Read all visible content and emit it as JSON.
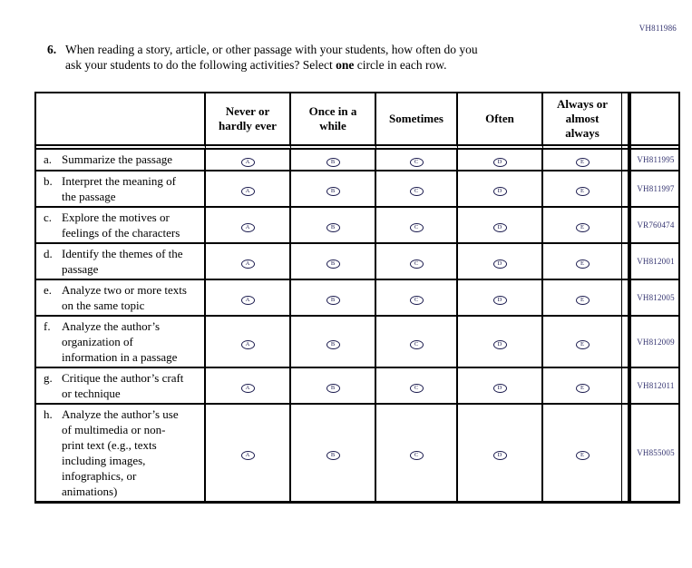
{
  "form_code": "VH811986",
  "question": {
    "number": "6.",
    "line1": "When reading a story, article, or other passage with your students, how often do you",
    "line2_pre": "ask your students to do the following activities? Select ",
    "line2_bold": "one",
    "line2_post": " circle in each row."
  },
  "table": {
    "columns": [
      "Never or hardly ever",
      "Once in a while",
      "Sometimes",
      "Often",
      "Always or almost always"
    ],
    "options": [
      "A",
      "B",
      "C",
      "D",
      "E"
    ],
    "rows": [
      {
        "letter": "a.",
        "label": "Summarize the passage",
        "code": "VH811995"
      },
      {
        "letter": "b.",
        "label": "Interpret the meaning of the passage",
        "code": "VH811997"
      },
      {
        "letter": "c.",
        "label": "Explore the motives or feelings of the characters",
        "code": "VR760474"
      },
      {
        "letter": "d.",
        "label": "Identify the themes of the passage",
        "code": "VH812001"
      },
      {
        "letter": "e.",
        "label": "Analyze two or more texts on the same topic",
        "code": "VH812005"
      },
      {
        "letter": "f.",
        "label": "Analyze the author’s organization of information in a passage",
        "code": "VH812009"
      },
      {
        "letter": "g.",
        "label": "Critique the author’s craft or technique",
        "code": "VH812011"
      },
      {
        "letter": "h.",
        "label": "Analyze the author’s use of multimedia or non-print text (e.g., texts including images, infographics, or animations)",
        "code": "VH855005"
      }
    ]
  },
  "colors": {
    "code_text": "#333370",
    "bubble_outline": "#1b1b4e",
    "table_border": "#000000",
    "background": "#ffffff"
  }
}
